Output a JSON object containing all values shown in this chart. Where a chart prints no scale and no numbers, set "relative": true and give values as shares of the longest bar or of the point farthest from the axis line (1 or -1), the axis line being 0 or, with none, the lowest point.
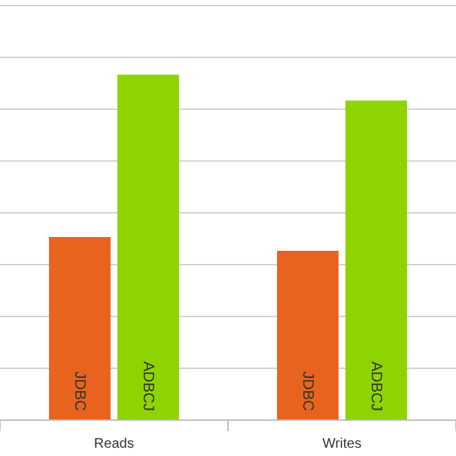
{
  "chart_data": {
    "type": "bar",
    "relative": true,
    "categories": [
      "Reads",
      "Writes"
    ],
    "series": [
      {
        "name": "JDBC",
        "color": "#e8641e",
        "values": [
          0.53,
          0.49
        ]
      },
      {
        "name": "ADBCJ",
        "color": "#8ed400",
        "values": [
          1,
          0.925
        ]
      }
    ],
    "grid": "y",
    "legend": false
  }
}
